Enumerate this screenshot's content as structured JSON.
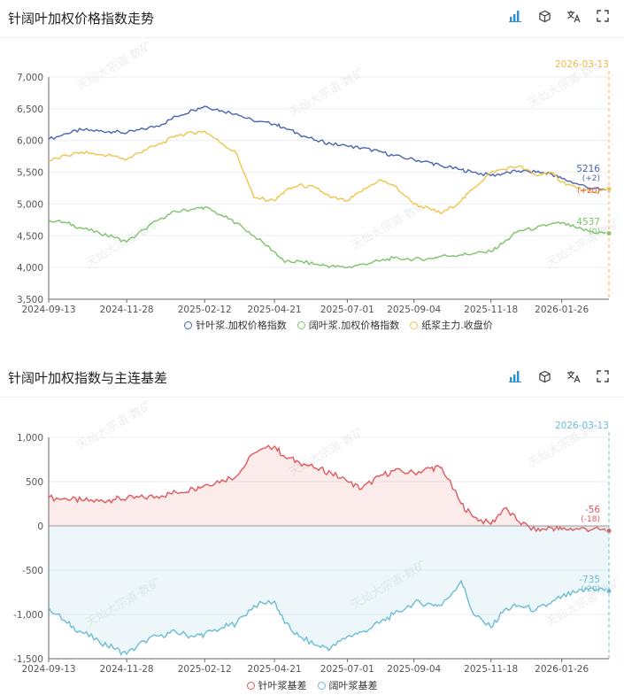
{
  "panels": [
    {
      "title": "针阔叶加权价格指数走势",
      "toolbar": [
        "bar-chart-icon",
        "cube-icon",
        "translate-icon",
        "fullscreen-icon"
      ]
    },
    {
      "title": "针阔叶加权指数与主连基差",
      "toolbar": [
        "bar-chart-icon",
        "cube-icon",
        "translate-icon",
        "fullscreen-icon"
      ]
    }
  ],
  "watermark": "天灿大宗道·数矿",
  "chart_data": [
    {
      "type": "line",
      "x": [
        "2024-09-13",
        "2024-10-01",
        "2024-10-15",
        "2024-11-01",
        "2024-11-15",
        "2024-11-28",
        "2024-12-15",
        "2025-01-01",
        "2025-01-15",
        "2025-02-01",
        "2025-02-12",
        "2025-03-01",
        "2025-03-15",
        "2025-04-01",
        "2025-04-21",
        "2025-05-01",
        "2025-05-15",
        "2025-06-01",
        "2025-06-15",
        "2025-07-01",
        "2025-07-15",
        "2025-08-01",
        "2025-08-15",
        "2025-09-04",
        "2025-09-20",
        "2025-10-01",
        "2025-10-20",
        "2025-11-01",
        "2025-11-18",
        "2025-12-01",
        "2025-12-15",
        "2026-01-01",
        "2026-01-15",
        "2026-01-26",
        "2026-02-10",
        "2026-02-25",
        "2026-03-13"
      ],
      "categories_ticks": [
        "2024-09-13",
        "2024-11-28",
        "2025-02-12",
        "2025-04-21",
        "2025-07-01",
        "2025-09-04",
        "2025-11-18",
        "2026-01-26"
      ],
      "series": [
        {
          "name": "针叶浆.加权价格指数",
          "color": "#4a64b0",
          "values": [
            6020,
            6110,
            6170,
            6150,
            6140,
            6120,
            6180,
            6250,
            6380,
            6480,
            6540,
            6470,
            6420,
            6300,
            6260,
            6200,
            6100,
            6000,
            5950,
            5910,
            5880,
            5830,
            5760,
            5700,
            5650,
            5600,
            5540,
            5500,
            5450,
            5480,
            5520,
            5500,
            5480,
            5400,
            5320,
            5240,
            5216
          ]
        },
        {
          "name": "阔叶浆.加权价格指数",
          "color": "#7cc36a",
          "values": [
            4750,
            4700,
            4620,
            4550,
            4480,
            4400,
            4600,
            4780,
            4880,
            4920,
            4950,
            4820,
            4700,
            4500,
            4250,
            4080,
            4100,
            4050,
            4020,
            4000,
            4050,
            4100,
            4150,
            4130,
            4140,
            4180,
            4200,
            4220,
            4250,
            4400,
            4580,
            4620,
            4680,
            4700,
            4620,
            4560,
            4537
          ]
        },
        {
          "name": "纸浆主力.收盘价",
          "color": "#f0c44a",
          "values": [
            5680,
            5760,
            5820,
            5780,
            5760,
            5700,
            5850,
            5950,
            6080,
            6120,
            6150,
            5950,
            5800,
            5100,
            5050,
            5200,
            5300,
            5250,
            5100,
            5050,
            5200,
            5380,
            5300,
            5000,
            4920,
            4850,
            5050,
            5250,
            5500,
            5550,
            5600,
            5450,
            5500,
            5350,
            5250,
            5180,
            5236
          ]
        }
      ],
      "yticks": [
        "7,000",
        "6,500",
        "6,000",
        "5,500",
        "5,000",
        "4,500",
        "4,000",
        "3,500"
      ],
      "ylim": [
        3500,
        7000
      ],
      "end_date": "2026-03-13",
      "end_labels": [
        {
          "value": "5216",
          "delta": "(+2)",
          "color": "#4a64b0"
        },
        {
          "value": "4537",
          "delta": "(0)",
          "color": "#7cc36a"
        },
        {
          "value": "",
          "delta": "(+20)",
          "color": "#d9534f"
        }
      ],
      "legend_position": "bottom"
    },
    {
      "type": "area",
      "x": [
        "2024-09-13",
        "2024-10-01",
        "2024-10-15",
        "2024-11-01",
        "2024-11-15",
        "2024-11-28",
        "2024-12-15",
        "2025-01-01",
        "2025-01-15",
        "2025-02-01",
        "2025-02-12",
        "2025-03-01",
        "2025-03-15",
        "2025-04-01",
        "2025-04-21",
        "2025-05-01",
        "2025-05-15",
        "2025-06-01",
        "2025-06-15",
        "2025-07-01",
        "2025-07-15",
        "2025-08-01",
        "2025-08-15",
        "2025-09-04",
        "2025-09-20",
        "2025-10-01",
        "2025-10-20",
        "2025-11-01",
        "2025-11-18",
        "2025-12-01",
        "2025-12-15",
        "2026-01-01",
        "2026-01-15",
        "2026-01-26",
        "2026-02-10",
        "2026-02-25",
        "2026-03-13"
      ],
      "categories_ticks": [
        "2024-09-13",
        "2024-11-28",
        "2025-02-12",
        "2025-04-21",
        "2025-07-01",
        "2025-09-04",
        "2025-11-18",
        "2026-01-26"
      ],
      "series": [
        {
          "name": "针叶浆基差",
          "color": "#e0575b",
          "values": [
            320,
            300,
            290,
            280,
            300,
            310,
            320,
            340,
            380,
            420,
            460,
            520,
            560,
            820,
            900,
            780,
            720,
            650,
            600,
            500,
            420,
            560,
            620,
            600,
            650,
            660,
            250,
            100,
            20,
            200,
            50,
            -60,
            -20,
            -40,
            -30,
            -40,
            -56
          ]
        },
        {
          "name": "阔叶浆基差",
          "color": "#6cbcd4",
          "values": [
            -920,
            -1100,
            -1200,
            -1300,
            -1380,
            -1450,
            -1300,
            -1230,
            -1200,
            -1250,
            -1220,
            -1150,
            -1100,
            -900,
            -850,
            -1100,
            -1250,
            -1350,
            -1380,
            -1250,
            -1200,
            -1100,
            -1000,
            -870,
            -880,
            -900,
            -620,
            -1000,
            -1150,
            -950,
            -900,
            -950,
            -880,
            -800,
            -750,
            -700,
            -735
          ]
        }
      ],
      "yticks": [
        "1,000",
        "500",
        "0",
        "-500",
        "-1,000",
        "-1,500"
      ],
      "ylim": [
        -1500,
        1000
      ],
      "end_date": "2026-03-13",
      "end_labels": [
        {
          "value": "-56",
          "delta": "(-18)",
          "color": "#e0575b"
        },
        {
          "value": "-735",
          "delta": "(-20)",
          "color": "#6cbcd4"
        }
      ],
      "legend_position": "bottom"
    }
  ]
}
